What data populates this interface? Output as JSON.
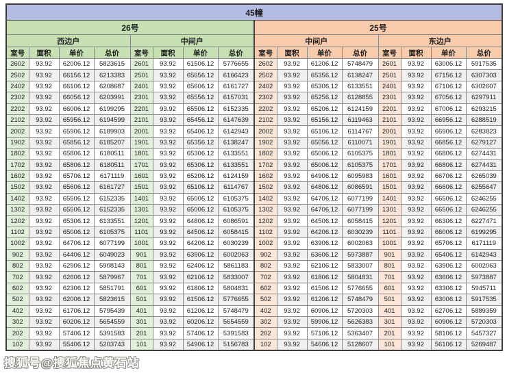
{
  "building_title": "45幢",
  "watermark": "搜狐号@搜狐焦点黄石站",
  "columns": [
    "室号",
    "面积",
    "单价",
    "总价"
  ],
  "sections": [
    {
      "name": "26号",
      "color": "#c6e0b4",
      "tint": "#e2efda",
      "groups": [
        "西边户",
        "中间户"
      ]
    },
    {
      "name": "25号",
      "color": "#f8cbad",
      "tint": "#fbe5d6",
      "groups": [
        "中间户",
        "东边户"
      ]
    }
  ],
  "colors": {
    "title_bar": "#b4bce4",
    "border_dark": "#3c3c3c",
    "border_cell": "#8a8a8a",
    "zebra_stripe": "#f0f0f0"
  },
  "rows": [
    [
      "2602",
      "93.92",
      "62006.12",
      "5823615",
      "2601",
      "93.92",
      "61506.12",
      "5776655",
      "2602",
      "93.92",
      "61206.12",
      "5748479",
      "2601",
      "93.92",
      "63006.12",
      "5917535"
    ],
    [
      "2502",
      "93.92",
      "66156.12",
      "6213383",
      "2501",
      "93.92",
      "65656.12",
      "6166423",
      "2502",
      "93.92",
      "65356.12",
      "6138247",
      "2501",
      "93.92",
      "67156.12",
      "6307303"
    ],
    [
      "2402",
      "93.92",
      "66106.12",
      "6208687",
      "2401",
      "93.92",
      "65606.12",
      "6161727",
      "2402",
      "93.92",
      "65306.12",
      "6133551",
      "2401",
      "93.92",
      "67106.12",
      "6302607"
    ],
    [
      "2302",
      "93.92",
      "66056.12",
      "6203991",
      "2301",
      "93.92",
      "65556.12",
      "6157031",
      "2302",
      "93.92",
      "65256.12",
      "6128855",
      "2301",
      "93.92",
      "67056.12",
      "6297911"
    ],
    [
      "2202",
      "93.92",
      "66006.12",
      "6199295",
      "2201",
      "93.92",
      "65506.12",
      "6152335",
      "2202",
      "93.92",
      "65206.12",
      "6124159",
      "2201",
      "93.92",
      "67006.12",
      "6293215"
    ],
    [
      "2102",
      "93.92",
      "65956.12",
      "6194599",
      "2101",
      "93.92",
      "65456.12",
      "6147639",
      "2102",
      "93.92",
      "65156.12",
      "6119463",
      "2101",
      "93.92",
      "66956.12",
      "6288519"
    ],
    [
      "2002",
      "93.92",
      "65906.12",
      "6189903",
      "2001",
      "93.92",
      "65406.12",
      "6142943",
      "2002",
      "93.92",
      "65106.12",
      "6114767",
      "2001",
      "93.92",
      "66906.12",
      "6283823"
    ],
    [
      "1902",
      "93.92",
      "65856.12",
      "6185207",
      "1901",
      "93.92",
      "65356.12",
      "6138247",
      "1902",
      "93.92",
      "65056.12",
      "6110071",
      "1901",
      "93.92",
      "66856.12",
      "6279127"
    ],
    [
      "1802",
      "93.92",
      "65806.12",
      "6180511",
      "1801",
      "93.92",
      "65306.12",
      "6133551",
      "1802",
      "93.92",
      "65006.12",
      "6105375",
      "1801",
      "93.92",
      "66806.12",
      "6274431"
    ],
    [
      "1702",
      "93.92",
      "65806.12",
      "6180511",
      "1701",
      "93.92",
      "65306.12",
      "6133551",
      "1702",
      "93.92",
      "65006.12",
      "6105375",
      "1701",
      "93.92",
      "66806.12",
      "6274431"
    ],
    [
      "1602",
      "93.92",
      "65706.12",
      "6171119",
      "1601",
      "93.92",
      "65206.12",
      "6124159",
      "1602",
      "93.92",
      "64906.12",
      "6095983",
      "1601",
      "93.92",
      "66706.12",
      "6265039"
    ],
    [
      "1502",
      "93.92",
      "65606.12",
      "6161727",
      "1501",
      "93.92",
      "65106.12",
      "6114767",
      "1502",
      "93.92",
      "64806.12",
      "6086591",
      "1501",
      "93.92",
      "66606.12",
      "6255647"
    ],
    [
      "1402",
      "93.92",
      "65506.12",
      "6152335",
      "1401",
      "93.92",
      "65006.12",
      "6105375",
      "1402",
      "93.92",
      "64706.12",
      "6077199",
      "1401",
      "93.92",
      "66506.12",
      "6246255"
    ],
    [
      "1302",
      "93.92",
      "65506.12",
      "6152335",
      "1301",
      "93.92",
      "65006.12",
      "6105375",
      "1302",
      "93.92",
      "64706.12",
      "6077199",
      "1301",
      "93.92",
      "66506.12",
      "6246255"
    ],
    [
      "1202",
      "93.92",
      "65306.12",
      "6133551",
      "1201",
      "93.92",
      "64806.12",
      "6086591",
      "1202",
      "93.92",
      "64506.12",
      "6058415",
      "1201",
      "93.92",
      "66306.12",
      "6227471"
    ],
    [
      "1102",
      "93.92",
      "65006.12",
      "6105375",
      "1101",
      "93.92",
      "64506.12",
      "6058415",
      "1102",
      "93.92",
      "64206.12",
      "6030239",
      "1101",
      "93.92",
      "66006.12",
      "6199295"
    ],
    [
      "1002",
      "93.92",
      "64706.12",
      "6077199",
      "1001",
      "93.92",
      "64206.12",
      "6030239",
      "1002",
      "93.92",
      "63906.12",
      "6002063",
      "1001",
      "93.92",
      "65706.12",
      "6171119"
    ],
    [
      "902",
      "93.92",
      "64406.12",
      "6049023",
      "901",
      "93.92",
      "63906.12",
      "6002063",
      "902",
      "93.92",
      "63606.12",
      "5973887",
      "901",
      "93.92",
      "65406.12",
      "6142943"
    ],
    [
      "802",
      "93.92",
      "62906.12",
      "5908143",
      "801",
      "93.92",
      "62406.12",
      "5861183",
      "802",
      "93.92",
      "62106.12",
      "5833007",
      "801",
      "93.92",
      "63906.12",
      "6002063"
    ],
    [
      "702",
      "93.92",
      "62606.12",
      "5879967",
      "701",
      "93.92",
      "62106.12",
      "5833007",
      "702",
      "93.92",
      "61806.12",
      "5804831",
      "701",
      "93.92",
      "63606.12",
      "5973887"
    ],
    [
      "602",
      "93.92",
      "62306.12",
      "5851791",
      "601",
      "93.92",
      "61806.12",
      "5804831",
      "602",
      "93.92",
      "61506.12",
      "5776655",
      "601",
      "93.92",
      "63306.12",
      "5945711"
    ],
    [
      "502",
      "93.92",
      "62006.12",
      "5823615",
      "501",
      "93.92",
      "61506.12",
      "5776655",
      "502",
      "93.92",
      "61206.12",
      "5748479",
      "501",
      "93.92",
      "63006.12",
      "5917535"
    ],
    [
      "402",
      "93.92",
      "61706.12",
      "5795439",
      "401",
      "93.92",
      "61206.12",
      "5748479",
      "402",
      "93.92",
      "60906.12",
      "5720303",
      "401",
      "93.92",
      "62706.12",
      "5889359"
    ],
    [
      "302",
      "93.92",
      "60206.12",
      "5654559",
      "301",
      "93.92",
      "60206.12",
      "5654559",
      "302",
      "93.92",
      "59906.12",
      "5626383",
      "301",
      "93.92",
      "60906.12",
      "5720303"
    ],
    [
      "202",
      "93.92",
      "57406.12",
      "5391583",
      "201",
      "93.92",
      "57406.12",
      "5391583",
      "202",
      "93.92",
      "57106.12",
      "5363407",
      "201",
      "93.92",
      "58106.12",
      "5457327"
    ],
    [
      "102",
      "93.92",
      "55406.12",
      "5203743",
      "101",
      "93.92",
      "54906.12",
      "5156783",
      "102",
      "93.92",
      "54606.12",
      "5128607",
      "101",
      "93.92",
      "56106.12",
      "5269487"
    ]
  ]
}
